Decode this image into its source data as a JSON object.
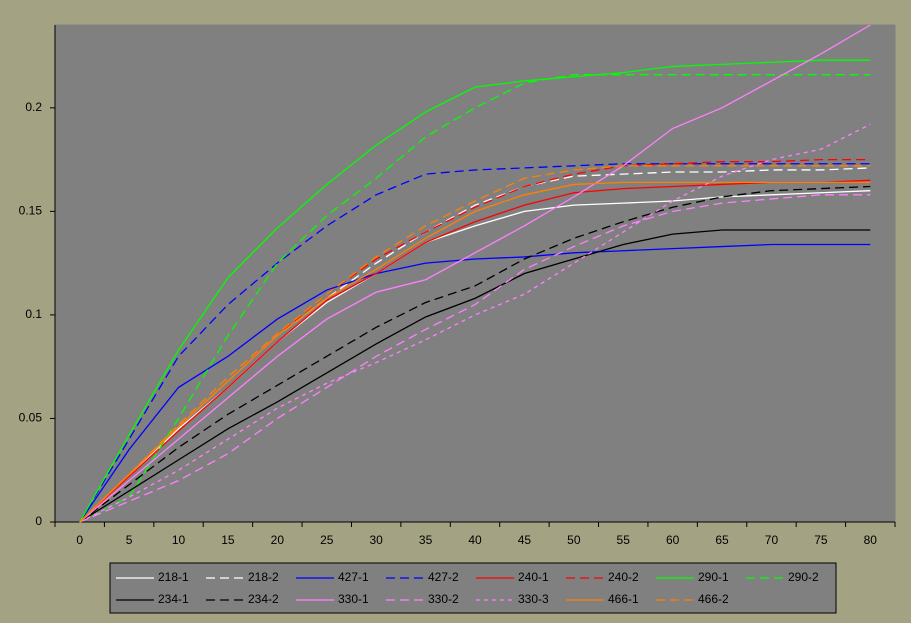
{
  "chart_data": {
    "type": "line",
    "categories": [
      "0",
      "5",
      "10",
      "15",
      "20",
      "25",
      "30",
      "35",
      "40",
      "45",
      "50",
      "55",
      "60",
      "65",
      "70",
      "75",
      "80"
    ],
    "ylim": [
      0,
      0.24
    ],
    "yticks": [
      0,
      0.05,
      0.1,
      0.15,
      0.2
    ],
    "grid": false,
    "legend": "bottom",
    "series": [
      {
        "name": "218-1",
        "color": "#ffffff",
        "dash": "solid",
        "values": [
          0,
          0.022,
          0.045,
          0.065,
          0.087,
          0.106,
          0.12,
          0.135,
          0.143,
          0.15,
          0.153,
          0.154,
          0.155,
          0.157,
          0.158,
          0.159,
          0.16
        ]
      },
      {
        "name": "218-2",
        "color": "#ffffff",
        "dash": "dash",
        "values": [
          0,
          0.023,
          0.046,
          0.068,
          0.09,
          0.108,
          0.125,
          0.14,
          0.153,
          0.162,
          0.167,
          0.168,
          0.169,
          0.169,
          0.17,
          0.17,
          0.171
        ]
      },
      {
        "name": "427-1",
        "color": "#0000ff",
        "dash": "solid",
        "values": [
          0,
          0.035,
          0.065,
          0.08,
          0.098,
          0.112,
          0.12,
          0.125,
          0.127,
          0.128,
          0.13,
          0.131,
          0.132,
          0.133,
          0.134,
          0.134,
          0.134
        ]
      },
      {
        "name": "427-2",
        "color": "#0000ff",
        "dash": "dash",
        "values": [
          0,
          0.04,
          0.08,
          0.105,
          0.125,
          0.143,
          0.158,
          0.168,
          0.17,
          0.171,
          0.172,
          0.173,
          0.173,
          0.173,
          0.173,
          0.173,
          0.173
        ]
      },
      {
        "name": "240-1",
        "color": "#ff0000",
        "dash": "solid",
        "values": [
          0,
          0.022,
          0.044,
          0.065,
          0.087,
          0.107,
          0.12,
          0.135,
          0.145,
          0.153,
          0.159,
          0.161,
          0.162,
          0.163,
          0.164,
          0.164,
          0.165
        ]
      },
      {
        "name": "240-2",
        "color": "#ff0000",
        "dash": "dash",
        "values": [
          0,
          0.023,
          0.046,
          0.068,
          0.09,
          0.11,
          0.127,
          0.14,
          0.152,
          0.162,
          0.168,
          0.172,
          0.173,
          0.174,
          0.174,
          0.175,
          0.175
        ]
      },
      {
        "name": "290-1",
        "color": "#00ff00",
        "dash": "solid",
        "values": [
          0,
          0.042,
          0.083,
          0.118,
          0.142,
          0.163,
          0.182,
          0.198,
          0.21,
          0.213,
          0.215,
          0.217,
          0.22,
          0.221,
          0.222,
          0.223,
          0.223
        ]
      },
      {
        "name": "290-2",
        "color": "#00ff00",
        "dash": "dash",
        "values": [
          0,
          0.012,
          0.05,
          0.09,
          0.125,
          0.148,
          0.166,
          0.186,
          0.2,
          0.212,
          0.216,
          0.216,
          0.216,
          0.216,
          0.216,
          0.216,
          0.216
        ]
      },
      {
        "name": "234-1",
        "color": "#000000",
        "dash": "solid",
        "values": [
          0,
          0.015,
          0.03,
          0.045,
          0.058,
          0.072,
          0.086,
          0.099,
          0.108,
          0.12,
          0.127,
          0.134,
          0.139,
          0.141,
          0.141,
          0.141,
          0.141
        ]
      },
      {
        "name": "234-2",
        "color": "#000000",
        "dash": "dash",
        "values": [
          0,
          0.018,
          0.036,
          0.052,
          0.066,
          0.08,
          0.094,
          0.106,
          0.114,
          0.127,
          0.137,
          0.145,
          0.152,
          0.157,
          0.16,
          0.161,
          0.162
        ]
      },
      {
        "name": "330-1",
        "color": "#ff80ff",
        "dash": "solid",
        "values": [
          0,
          0.02,
          0.04,
          0.06,
          0.08,
          0.098,
          0.111,
          0.117,
          0.13,
          0.143,
          0.157,
          0.172,
          0.19,
          0.2,
          0.213,
          0.226,
          0.24
        ]
      },
      {
        "name": "330-2",
        "color": "#ff80ff",
        "dash": "dash",
        "values": [
          0,
          0.01,
          0.02,
          0.033,
          0.05,
          0.065,
          0.08,
          0.093,
          0.105,
          0.122,
          0.133,
          0.143,
          0.15,
          0.154,
          0.156,
          0.158,
          0.158
        ]
      },
      {
        "name": "330-3",
        "color": "#ff80ff",
        "dash": "dot",
        "values": [
          0,
          0.012,
          0.025,
          0.04,
          0.055,
          0.067,
          0.077,
          0.088,
          0.1,
          0.11,
          0.125,
          0.14,
          0.155,
          0.167,
          0.175,
          0.18,
          0.192
        ]
      },
      {
        "name": "466-1",
        "color": "#ff8000",
        "dash": "solid",
        "values": [
          0,
          0.023,
          0.046,
          0.068,
          0.09,
          0.108,
          0.122,
          0.137,
          0.15,
          0.158,
          0.163,
          0.164,
          0.164,
          0.164,
          0.164,
          0.164,
          0.164
        ]
      },
      {
        "name": "466-2",
        "color": "#ff8000",
        "dash": "dash",
        "values": [
          0,
          0.023,
          0.047,
          0.07,
          0.091,
          0.11,
          0.128,
          0.143,
          0.155,
          0.166,
          0.17,
          0.172,
          0.172,
          0.172,
          0.172,
          0.172,
          0.172
        ]
      }
    ]
  }
}
